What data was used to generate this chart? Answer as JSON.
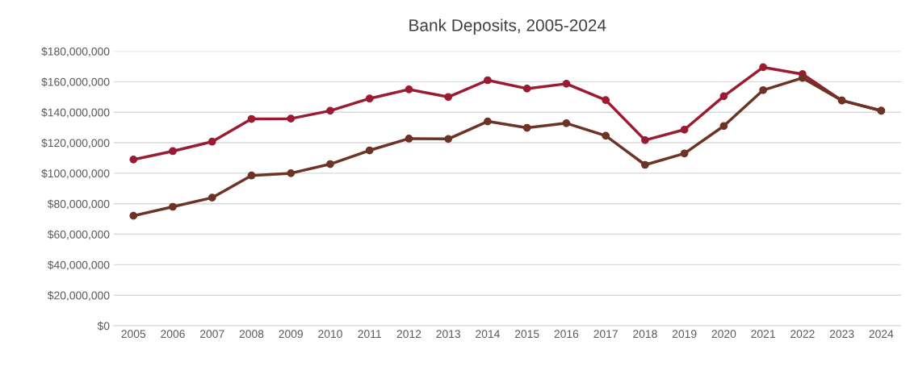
{
  "chart_data": {
    "type": "line",
    "title": "Bank Deposits, 2005-2024",
    "categories": [
      "2005",
      "2006",
      "2007",
      "2008",
      "2009",
      "2010",
      "2011",
      "2012",
      "2013",
      "2014",
      "2015",
      "2016",
      "2017",
      "2018",
      "2019",
      "2020",
      "2021",
      "2022",
      "2023",
      "2024"
    ],
    "series": [
      {
        "color": "#9b1b30",
        "values": [
          109000000,
          114500000,
          120700000,
          135600000,
          135800000,
          141000000,
          149000000,
          155000000,
          150000000,
          161000000,
          155500000,
          158700000,
          148000000,
          121700000,
          128600000,
          150500000,
          169500000,
          165000000,
          147700000,
          141000000
        ]
      },
      {
        "color": "#6b3424",
        "values": [
          72100000,
          78000000,
          84000000,
          98500000,
          100000000,
          106000000,
          115000000,
          122700000,
          122500000,
          134000000,
          129800000,
          132800000,
          124600000,
          105500000,
          113000000,
          131000000,
          154500000,
          162500000,
          147700000,
          141000000
        ]
      }
    ],
    "ylim": [
      0,
      180000000
    ],
    "yticks": [
      {
        "value": 0,
        "label": "$0"
      },
      {
        "value": 20000000,
        "label": "$20,000,000"
      },
      {
        "value": 40000000,
        "label": "$40,000,000"
      },
      {
        "value": 60000000,
        "label": "$60,000,000"
      },
      {
        "value": 80000000,
        "label": "$80,000,000"
      },
      {
        "value": 100000000,
        "label": "$100,000,000"
      },
      {
        "value": 120000000,
        "label": "$120,000,000"
      },
      {
        "value": 140000000,
        "label": "$140,000,000"
      },
      {
        "value": 160000000,
        "label": "$160,000,000"
      },
      {
        "value": 180000000,
        "label": "$180,000,000"
      }
    ],
    "grid": "y",
    "marker": "circle",
    "line_style": "solid",
    "legend": false
  }
}
